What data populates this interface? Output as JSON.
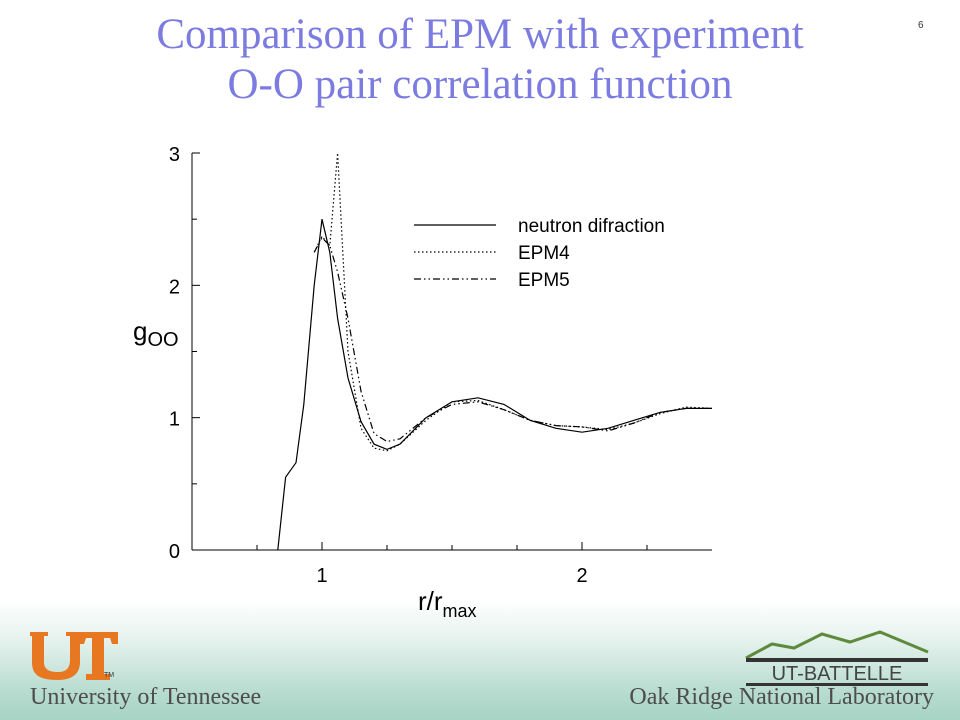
{
  "slide": {
    "title_line1": "Comparison of EPM with experiment",
    "title_line2": "O-O pair correlation function",
    "slide_number": "6",
    "title_color": "#7b7be0"
  },
  "footer": {
    "left_text": "University of Tennessee",
    "right_text": "Oak Ridge National Laboratory",
    "left_logo_text": "UT",
    "left_logo_tm": "TM",
    "right_logo_text": "UT-BATTELLE",
    "left_logo_color": "#e87722"
  },
  "chart_data": {
    "type": "line",
    "xlabel": "r/r",
    "xlabel_sub": "max",
    "ylabel": "g",
    "ylabel_sub": "OO",
    "xlim": [
      0.5,
      2.5
    ],
    "ylim": [
      0,
      3
    ],
    "xticks": [
      1,
      2
    ],
    "xtick_labels": [
      "1",
      "2"
    ],
    "yticks": [
      0,
      1,
      2,
      3
    ],
    "ytick_labels": [
      "0",
      "1",
      "2",
      "3"
    ],
    "legend_position": "top-right",
    "grid": false,
    "series": [
      {
        "name": "neutron difraction",
        "style": "solid",
        "x": [
          0.83,
          0.86,
          0.9,
          0.93,
          0.97,
          1.0,
          1.03,
          1.06,
          1.1,
          1.15,
          1.2,
          1.25,
          1.3,
          1.4,
          1.5,
          1.6,
          1.7,
          1.8,
          1.9,
          2.0,
          2.1,
          2.2,
          2.3,
          2.4,
          2.5
        ],
        "y": [
          0.0,
          0.55,
          0.66,
          1.1,
          2.0,
          2.5,
          2.25,
          1.75,
          1.3,
          0.97,
          0.8,
          0.76,
          0.8,
          1.0,
          1.12,
          1.15,
          1.1,
          0.98,
          0.92,
          0.89,
          0.92,
          0.98,
          1.04,
          1.07,
          1.07
        ]
      },
      {
        "name": "EPM4",
        "style": "dotted",
        "x": [
          0.97,
          1.0,
          1.03,
          1.06,
          1.1,
          1.15,
          1.2,
          1.25,
          1.3,
          1.4,
          1.5,
          1.6,
          1.7,
          1.8,
          1.9,
          2.0,
          2.1,
          2.2,
          2.3,
          2.4,
          2.5
        ],
        "y": [
          2.25,
          2.37,
          2.3,
          3.0,
          1.5,
          0.92,
          0.77,
          0.75,
          0.8,
          0.98,
          1.12,
          1.13,
          1.06,
          0.98,
          0.94,
          0.93,
          0.91,
          0.96,
          1.03,
          1.08,
          1.07
        ]
      },
      {
        "name": "EPM5",
        "style": "dashdot",
        "x": [
          0.97,
          1.0,
          1.03,
          1.06,
          1.1,
          1.15,
          1.2,
          1.25,
          1.3,
          1.4,
          1.5,
          1.6,
          1.7,
          1.8,
          1.9,
          2.0,
          2.1,
          2.2,
          2.3,
          2.4,
          2.5
        ],
        "y": [
          2.25,
          2.36,
          2.3,
          2.1,
          1.75,
          1.2,
          0.88,
          0.82,
          0.84,
          1.0,
          1.1,
          1.12,
          1.06,
          0.98,
          0.94,
          0.93,
          0.9,
          0.96,
          1.04,
          1.07,
          1.07
        ]
      }
    ]
  }
}
